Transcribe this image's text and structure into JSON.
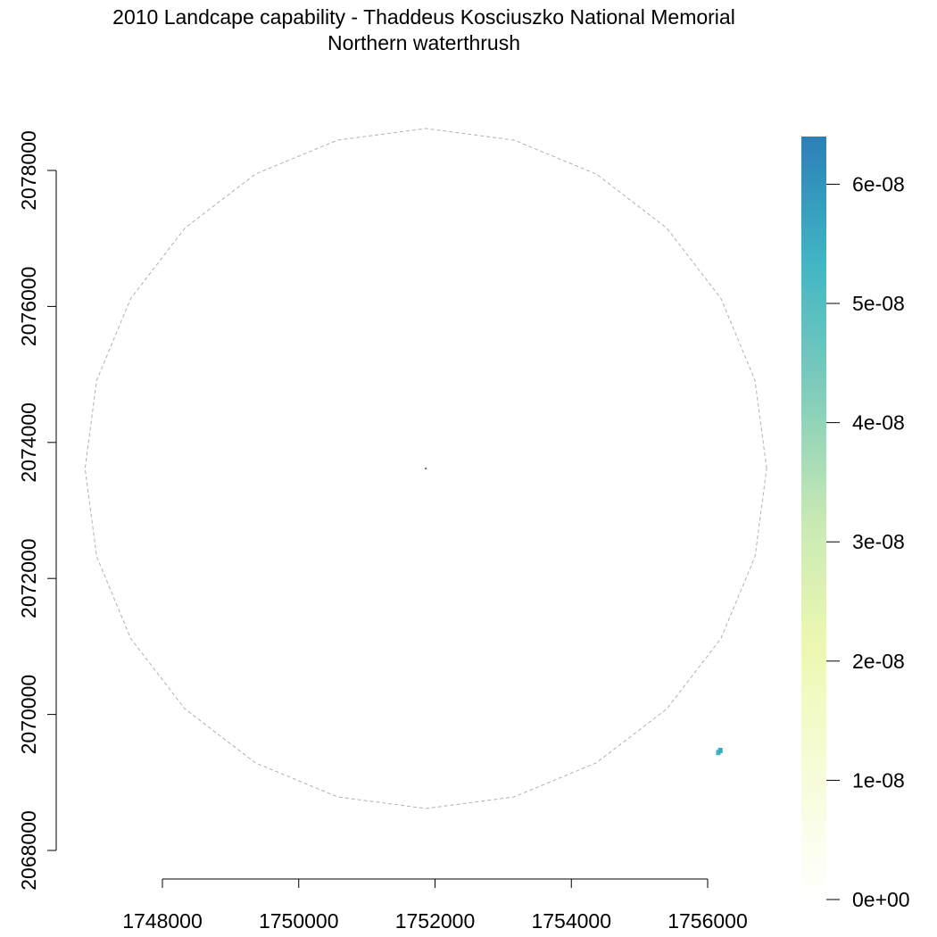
{
  "title": {
    "line1": "2010 Landcape capability - Thaddeus Kosciuszko National Memorial",
    "line2": "Northern waterthrush"
  },
  "chart_data": {
    "type": "heatmap",
    "x_axis": {
      "ticks": [
        1748000,
        1750000,
        1752000,
        1754000,
        1756000
      ],
      "tick_labels": [
        "1748000",
        "1750000",
        "1752000",
        "1754000",
        "1756000"
      ],
      "range": [
        1748000,
        1756000
      ]
    },
    "y_axis": {
      "ticks": [
        2068000,
        2070000,
        2072000,
        2074000,
        2076000,
        2078000
      ],
      "tick_labels": [
        "2068000",
        "2070000",
        "2072000",
        "2074000",
        "2076000",
        "2078000"
      ],
      "range": [
        2068000,
        2078000
      ]
    },
    "boundary": {
      "shape": "polygon-circle",
      "center": [
        1751865,
        2073617
      ],
      "radius": 5000,
      "vertices": 24,
      "line_style": "dashed",
      "color": "#b0b0b0"
    },
    "center_point": [
      1751865,
      2073617
    ],
    "cells": [
      {
        "x": 1756150,
        "y": 2069440,
        "value": 5.3e-08
      },
      {
        "x": 1756180,
        "y": 2069470,
        "value": 5.6e-08
      }
    ],
    "legend": {
      "position": "right",
      "min": 0,
      "max": 6.4e-08,
      "ticks": [
        0,
        1e-08,
        2e-08,
        3e-08,
        4e-08,
        5e-08,
        6e-08
      ],
      "tick_labels": [
        "0e+00",
        "1e-08",
        "2e-08",
        "3e-08",
        "4e-08",
        "5e-08",
        "6e-08"
      ],
      "colors": [
        "#ffffff",
        "#f7fcd8",
        "#edf8b1",
        "#c7e9b4",
        "#7fcdbb",
        "#41b6c4",
        "#2c7fb8"
      ]
    }
  }
}
